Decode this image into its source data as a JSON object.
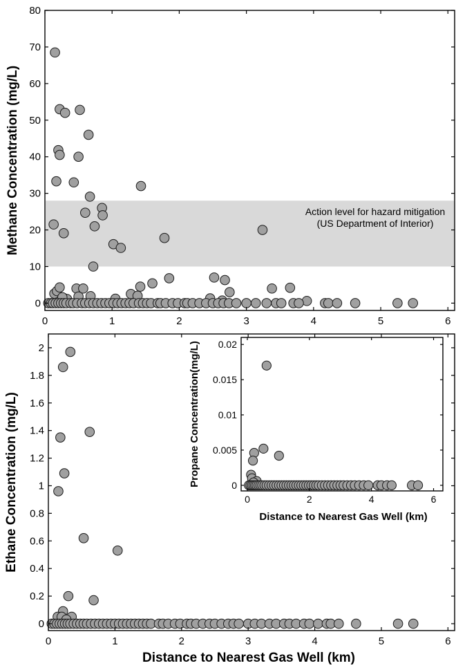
{
  "colors": {
    "marker_fill": "#a0a0a0",
    "marker_stroke": "#1a1a1a",
    "band_fill": "#d9d9d9",
    "axis": "#000000"
  },
  "chart_data": [
    {
      "id": "methane",
      "type": "scatter",
      "xlabel": "",
      "ylabel": "Methane Concentration (mg/L)",
      "xlim": [
        0,
        6.1
      ],
      "ylim": [
        -2,
        80
      ],
      "xticks": [
        0,
        1,
        2,
        3,
        4,
        5,
        6
      ],
      "yticks": [
        0,
        10,
        20,
        30,
        40,
        50,
        60,
        70,
        80
      ],
      "grid": false,
      "band": {
        "y_range": [
          10,
          28
        ],
        "label_line1": "Action level for hazard mitigation",
        "label_line2": "(US Department of Interior)"
      },
      "points": [
        [
          0.15,
          68.5
        ],
        [
          0.22,
          53
        ],
        [
          0.3,
          52
        ],
        [
          0.52,
          52.8
        ],
        [
          0.2,
          41.8
        ],
        [
          0.22,
          40.5
        ],
        [
          0.5,
          40
        ],
        [
          0.65,
          46
        ],
        [
          0.43,
          33
        ],
        [
          0.17,
          33.3
        ],
        [
          0.67,
          29.1
        ],
        [
          1.43,
          32
        ],
        [
          0.6,
          24.7
        ],
        [
          0.85,
          26
        ],
        [
          0.86,
          24
        ],
        [
          0.13,
          21.5
        ],
        [
          0.28,
          19.1
        ],
        [
          0.74,
          21
        ],
        [
          1.02,
          16.1
        ],
        [
          1.13,
          15.1
        ],
        [
          1.78,
          17.8
        ],
        [
          3.24,
          20
        ],
        [
          0.72,
          10
        ],
        [
          0.14,
          2.6
        ],
        [
          0.18,
          3.3
        ],
        [
          0.22,
          4.3
        ],
        [
          0.47,
          4
        ],
        [
          0.57,
          4
        ],
        [
          1.42,
          4.5
        ],
        [
          1.6,
          5.4
        ],
        [
          1.85,
          6.8
        ],
        [
          2.52,
          7
        ],
        [
          2.68,
          6.3
        ],
        [
          2.75,
          3
        ],
        [
          0.68,
          1.9
        ],
        [
          1.28,
          2.5
        ],
        [
          1.38,
          2
        ],
        [
          3.38,
          4
        ],
        [
          3.65,
          4.2
        ],
        [
          0.28,
          1.4
        ],
        [
          0.33,
          1.1
        ],
        [
          0.26,
          1.6
        ],
        [
          0.5,
          1.8
        ],
        [
          1.05,
          1.2
        ],
        [
          2.46,
          1.3
        ],
        [
          2.64,
          0.7
        ],
        [
          3.9,
          0.6
        ],
        [
          0.05,
          0
        ],
        [
          0.09,
          0
        ],
        [
          0.12,
          0
        ],
        [
          0.16,
          0
        ],
        [
          0.2,
          0
        ],
        [
          0.24,
          0
        ],
        [
          0.28,
          0
        ],
        [
          0.32,
          0
        ],
        [
          0.38,
          0
        ],
        [
          0.42,
          0
        ],
        [
          0.48,
          0
        ],
        [
          0.55,
          0
        ],
        [
          0.6,
          0
        ],
        [
          0.66,
          0
        ],
        [
          0.72,
          0
        ],
        [
          0.78,
          0
        ],
        [
          0.84,
          0
        ],
        [
          0.9,
          0
        ],
        [
          0.96,
          0
        ],
        [
          1.02,
          0
        ],
        [
          1.08,
          0
        ],
        [
          1.14,
          0
        ],
        [
          1.2,
          0
        ],
        [
          1.26,
          0
        ],
        [
          1.32,
          0
        ],
        [
          1.4,
          0
        ],
        [
          1.46,
          0
        ],
        [
          1.52,
          0
        ],
        [
          1.58,
          0
        ],
        [
          1.68,
          0
        ],
        [
          1.72,
          0
        ],
        [
          1.8,
          0
        ],
        [
          1.9,
          0
        ],
        [
          1.98,
          0
        ],
        [
          2.08,
          0
        ],
        [
          2.12,
          0
        ],
        [
          2.2,
          0
        ],
        [
          2.3,
          0
        ],
        [
          2.4,
          0
        ],
        [
          2.5,
          0
        ],
        [
          2.58,
          0
        ],
        [
          2.66,
          0
        ],
        [
          2.74,
          0
        ],
        [
          2.85,
          0
        ],
        [
          3.0,
          0
        ],
        [
          3.14,
          0
        ],
        [
          3.3,
          0
        ],
        [
          3.44,
          0
        ],
        [
          3.52,
          0
        ],
        [
          3.7,
          0
        ],
        [
          3.78,
          0
        ],
        [
          4.17,
          0
        ],
        [
          4.22,
          0
        ],
        [
          4.35,
          0
        ],
        [
          4.62,
          0
        ],
        [
          5.25,
          0
        ],
        [
          5.48,
          0
        ]
      ]
    },
    {
      "id": "ethane",
      "type": "scatter",
      "xlabel": "Distance to Nearest Gas Well (km)",
      "ylabel": "Ethane Concentration (mg/L)",
      "xlim": [
        0,
        6.1
      ],
      "ylim": [
        -0.05,
        2.1
      ],
      "xticks": [
        0,
        1,
        2,
        3,
        4,
        5,
        6
      ],
      "yticks": [
        0,
        0.2,
        0.4,
        0.6,
        0.8,
        1,
        1.2,
        1.4,
        1.6,
        1.8,
        2
      ],
      "grid": false,
      "points": [
        [
          0.33,
          1.97
        ],
        [
          0.22,
          1.86
        ],
        [
          0.18,
          1.35
        ],
        [
          0.24,
          1.09
        ],
        [
          0.15,
          0.96
        ],
        [
          0.62,
          1.39
        ],
        [
          0.53,
          0.62
        ],
        [
          1.04,
          0.53
        ],
        [
          0.3,
          0.2
        ],
        [
          0.68,
          0.17
        ],
        [
          0.22,
          0.09
        ],
        [
          0.14,
          0.05
        ],
        [
          0.2,
          0.05
        ],
        [
          0.35,
          0.05
        ],
        [
          0.27,
          0.03
        ],
        [
          0.05,
          0
        ],
        [
          0.09,
          0
        ],
        [
          0.13,
          0
        ],
        [
          0.17,
          0
        ],
        [
          0.21,
          0
        ],
        [
          0.25,
          0
        ],
        [
          0.29,
          0
        ],
        [
          0.33,
          0
        ],
        [
          0.38,
          0
        ],
        [
          0.43,
          0
        ],
        [
          0.48,
          0
        ],
        [
          0.53,
          0
        ],
        [
          0.58,
          0
        ],
        [
          0.64,
          0
        ],
        [
          0.7,
          0
        ],
        [
          0.76,
          0
        ],
        [
          0.82,
          0
        ],
        [
          0.88,
          0
        ],
        [
          0.94,
          0
        ],
        [
          1.0,
          0
        ],
        [
          1.06,
          0
        ],
        [
          1.12,
          0
        ],
        [
          1.18,
          0
        ],
        [
          1.24,
          0
        ],
        [
          1.3,
          0
        ],
        [
          1.36,
          0
        ],
        [
          1.42,
          0
        ],
        [
          1.48,
          0
        ],
        [
          1.54,
          0
        ],
        [
          1.66,
          0
        ],
        [
          1.72,
          0
        ],
        [
          1.8,
          0
        ],
        [
          1.9,
          0
        ],
        [
          1.98,
          0
        ],
        [
          2.08,
          0
        ],
        [
          2.14,
          0
        ],
        [
          2.22,
          0
        ],
        [
          2.32,
          0
        ],
        [
          2.42,
          0
        ],
        [
          2.5,
          0
        ],
        [
          2.6,
          0
        ],
        [
          2.7,
          0
        ],
        [
          2.78,
          0
        ],
        [
          2.86,
          0
        ],
        [
          3.0,
          0
        ],
        [
          3.1,
          0
        ],
        [
          3.2,
          0
        ],
        [
          3.32,
          0
        ],
        [
          3.42,
          0
        ],
        [
          3.54,
          0
        ],
        [
          3.62,
          0
        ],
        [
          3.72,
          0
        ],
        [
          3.84,
          0
        ],
        [
          3.92,
          0
        ],
        [
          4.05,
          0
        ],
        [
          4.18,
          0
        ],
        [
          4.24,
          0
        ],
        [
          4.36,
          0
        ],
        [
          4.62,
          0
        ],
        [
          5.25,
          0
        ],
        [
          5.48,
          0
        ]
      ]
    },
    {
      "id": "propane-inset",
      "type": "scatter",
      "xlabel": "Distance to Nearest Gas Well (km)",
      "ylabel": "Propane Concentration(mg/L)",
      "xlim": [
        -0.2,
        6.3
      ],
      "ylim": [
        -0.0008,
        0.021
      ],
      "xticks": [
        0,
        2,
        4,
        6
      ],
      "yticks": [
        0,
        0.005,
        0.01,
        0.015,
        0.02
      ],
      "ytick_labels": [
        "0",
        "0.005",
        "0.01",
        "0.015",
        "0.02"
      ],
      "grid": false,
      "points": [
        [
          0.62,
          0.017
        ],
        [
          0.52,
          0.0052
        ],
        [
          1.02,
          0.0042
        ],
        [
          0.22,
          0.0046
        ],
        [
          0.18,
          0.0035
        ],
        [
          0.12,
          0.0015
        ],
        [
          0.15,
          0.001
        ],
        [
          0.3,
          0.0006
        ],
        [
          0.2,
          0.0004
        ],
        [
          0.05,
          0
        ],
        [
          0.1,
          0
        ],
        [
          0.15,
          0
        ],
        [
          0.2,
          0
        ],
        [
          0.25,
          0
        ],
        [
          0.3,
          0
        ],
        [
          0.36,
          0
        ],
        [
          0.42,
          0
        ],
        [
          0.48,
          0
        ],
        [
          0.55,
          0
        ],
        [
          0.62,
          0
        ],
        [
          0.7,
          0
        ],
        [
          0.78,
          0
        ],
        [
          0.86,
          0
        ],
        [
          0.94,
          0
        ],
        [
          1.02,
          0
        ],
        [
          1.1,
          0
        ],
        [
          1.18,
          0
        ],
        [
          1.26,
          0
        ],
        [
          1.34,
          0
        ],
        [
          1.42,
          0
        ],
        [
          1.5,
          0
        ],
        [
          1.58,
          0
        ],
        [
          1.66,
          0
        ],
        [
          1.74,
          0
        ],
        [
          1.82,
          0
        ],
        [
          1.9,
          0
        ],
        [
          1.98,
          0
        ],
        [
          2.06,
          0
        ],
        [
          2.14,
          0
        ],
        [
          2.22,
          0
        ],
        [
          2.3,
          0
        ],
        [
          2.4,
          0
        ],
        [
          2.5,
          0
        ],
        [
          2.6,
          0
        ],
        [
          2.7,
          0
        ],
        [
          2.8,
          0
        ],
        [
          2.9,
          0
        ],
        [
          3.0,
          0
        ],
        [
          3.1,
          0
        ],
        [
          3.22,
          0
        ],
        [
          3.34,
          0
        ],
        [
          3.46,
          0
        ],
        [
          3.6,
          0
        ],
        [
          3.75,
          0
        ],
        [
          3.9,
          0
        ],
        [
          4.2,
          0
        ],
        [
          4.32,
          0
        ],
        [
          4.5,
          0
        ],
        [
          4.65,
          0
        ],
        [
          5.3,
          0
        ],
        [
          5.5,
          0
        ]
      ]
    }
  ]
}
